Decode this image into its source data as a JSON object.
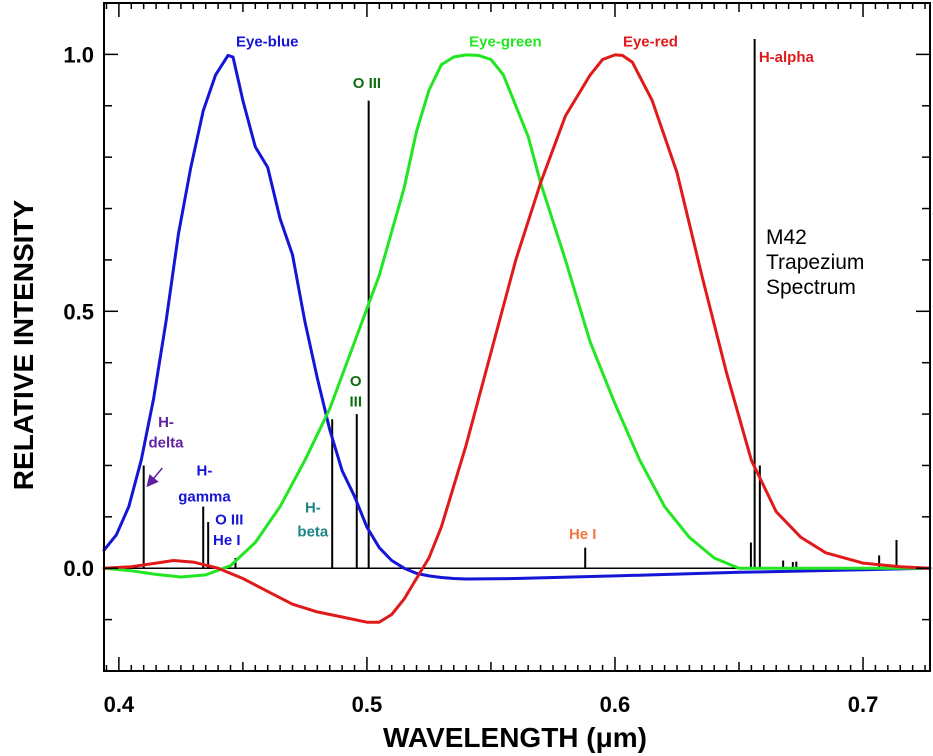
{
  "chart_data": {
    "type": "line",
    "title": "",
    "xlabel": "WAVELENGTH (μm)",
    "ylabel": "RELATIVE INTENSITY",
    "xlim": [
      0.394,
      0.727
    ],
    "ylim": [
      -0.2,
      1.1
    ],
    "x_ticks": [
      {
        "value": 0.4,
        "label": "0.4"
      },
      {
        "value": 0.5,
        "label": "0.5"
      },
      {
        "value": 0.6,
        "label": "0.6"
      },
      {
        "value": 0.7,
        "label": "0.7"
      }
    ],
    "y_ticks": [
      {
        "value": 0.0,
        "label": "0.0"
      },
      {
        "value": 0.5,
        "label": "0.5"
      },
      {
        "value": 1.0,
        "label": "1.0"
      }
    ],
    "grid": false,
    "colors": {
      "blue": "#1515d8",
      "green": "#22e622",
      "red": "#e01a1a",
      "spectrum": "#000000"
    },
    "series": [
      {
        "name": "Eye-blue",
        "label": "Eye-blue",
        "color": "#1515d8",
        "label_at": [
          0.446,
          1.0
        ],
        "x": [
          0.394,
          0.399,
          0.404,
          0.409,
          0.414,
          0.419,
          0.424,
          0.429,
          0.434,
          0.439,
          0.444,
          0.446,
          0.45,
          0.455,
          0.46,
          0.465,
          0.47,
          0.475,
          0.48,
          0.485,
          0.49,
          0.495,
          0.5,
          0.505,
          0.51,
          0.515,
          0.52,
          0.525,
          0.53,
          0.535,
          0.54,
          0.56,
          0.6,
          0.65,
          0.7,
          0.727
        ],
        "y": [
          0.035,
          0.065,
          0.12,
          0.21,
          0.33,
          0.48,
          0.65,
          0.78,
          0.89,
          0.96,
          0.998,
          0.995,
          0.91,
          0.82,
          0.78,
          0.68,
          0.61,
          0.48,
          0.37,
          0.27,
          0.19,
          0.14,
          0.08,
          0.04,
          0.015,
          0.0,
          -0.01,
          -0.015,
          -0.018,
          -0.02,
          -0.021,
          -0.02,
          -0.015,
          -0.008,
          -0.003,
          0.0
        ]
      },
      {
        "name": "Eye-green",
        "label": "Eye-green",
        "color": "#22e622",
        "label_at": [
          0.54,
          1.0
        ],
        "x": [
          0.394,
          0.405,
          0.415,
          0.425,
          0.435,
          0.445,
          0.455,
          0.465,
          0.475,
          0.485,
          0.495,
          0.505,
          0.515,
          0.52,
          0.525,
          0.53,
          0.535,
          0.54,
          0.545,
          0.55,
          0.555,
          0.56,
          0.565,
          0.57,
          0.58,
          0.59,
          0.6,
          0.61,
          0.62,
          0.63,
          0.64,
          0.65,
          0.7,
          0.727
        ],
        "y": [
          0.0,
          -0.005,
          -0.012,
          -0.017,
          -0.013,
          0.005,
          0.05,
          0.12,
          0.21,
          0.31,
          0.44,
          0.57,
          0.74,
          0.85,
          0.93,
          0.98,
          0.995,
          0.999,
          0.998,
          0.99,
          0.96,
          0.9,
          0.84,
          0.75,
          0.6,
          0.44,
          0.32,
          0.21,
          0.12,
          0.06,
          0.02,
          0.0,
          0.0,
          0.0
        ]
      },
      {
        "name": "Eye-red",
        "label": "Eye-red",
        "color": "#e01a1a",
        "label_at": [
          0.602,
          1.0
        ],
        "x": [
          0.394,
          0.405,
          0.415,
          0.422,
          0.43,
          0.44,
          0.45,
          0.46,
          0.47,
          0.48,
          0.49,
          0.5,
          0.505,
          0.51,
          0.515,
          0.52,
          0.525,
          0.53,
          0.54,
          0.55,
          0.56,
          0.57,
          0.58,
          0.59,
          0.595,
          0.6,
          0.603,
          0.607,
          0.615,
          0.625,
          0.635,
          0.645,
          0.655,
          0.665,
          0.675,
          0.685,
          0.7,
          0.715,
          0.727
        ],
        "y": [
          0.0,
          0.003,
          0.01,
          0.015,
          0.012,
          0.0,
          -0.02,
          -0.045,
          -0.07,
          -0.085,
          -0.095,
          -0.105,
          -0.105,
          -0.09,
          -0.06,
          -0.02,
          0.02,
          0.08,
          0.24,
          0.42,
          0.6,
          0.75,
          0.88,
          0.96,
          0.99,
          0.999,
          0.998,
          0.985,
          0.91,
          0.77,
          0.57,
          0.38,
          0.21,
          0.11,
          0.06,
          0.03,
          0.01,
          0.003,
          0.0
        ]
      }
    ],
    "spectrum_lines": [
      {
        "x": 0.41,
        "y": 0.2
      },
      {
        "x": 0.434,
        "y": 0.12
      },
      {
        "x": 0.436,
        "y": 0.09
      },
      {
        "x": 0.447,
        "y": 0.02
      },
      {
        "x": 0.486,
        "y": 0.29
      },
      {
        "x": 0.4959,
        "y": 0.3
      },
      {
        "x": 0.5007,
        "y": 0.91
      },
      {
        "x": 0.588,
        "y": 0.04
      },
      {
        "x": 0.6548,
        "y": 0.05
      },
      {
        "x": 0.6563,
        "y": 1.03
      },
      {
        "x": 0.6584,
        "y": 0.2
      },
      {
        "x": 0.6678,
        "y": 0.015
      },
      {
        "x": 0.6717,
        "y": 0.012
      },
      {
        "x": 0.6731,
        "y": 0.013
      },
      {
        "x": 0.7065,
        "y": 0.025
      },
      {
        "x": 0.7135,
        "y": 0.055
      }
    ],
    "annotations": [
      {
        "text": "H-alpha",
        "x": 0.658,
        "y": 0.985,
        "color": "#e01a1a",
        "anchor": "start"
      },
      {
        "text": "O III",
        "x": 0.5,
        "y": 0.935,
        "color": "#0e6e0e",
        "anchor": "middle"
      },
      {
        "text": "O",
        "x": 0.4955,
        "y": 0.355,
        "color": "#0e6e0e",
        "anchor": "middle"
      },
      {
        "text": "III",
        "x": 0.4955,
        "y": 0.315,
        "color": "#0e6e0e",
        "anchor": "middle"
      },
      {
        "text": "H-",
        "x": 0.419,
        "y": 0.275,
        "color": "#5f1fa0",
        "anchor": "middle"
      },
      {
        "text": "delta",
        "x": 0.419,
        "y": 0.235,
        "color": "#5f1fa0",
        "anchor": "middle"
      },
      {
        "text": "H-",
        "x": 0.4345,
        "y": 0.18,
        "color": "#1515d8",
        "anchor": "middle"
      },
      {
        "text": "gamma",
        "x": 0.4345,
        "y": 0.13,
        "color": "#1515d8",
        "anchor": "middle"
      },
      {
        "text": "O III",
        "x": 0.4445,
        "y": 0.085,
        "color": "#1515d8",
        "anchor": "middle"
      },
      {
        "text": "He I",
        "x": 0.4435,
        "y": 0.045,
        "color": "#1515d8",
        "anchor": "middle"
      },
      {
        "text": "H-",
        "x": 0.4782,
        "y": 0.108,
        "color": "#1c8585",
        "anchor": "middle"
      },
      {
        "text": "beta",
        "x": 0.4782,
        "y": 0.062,
        "color": "#1c8585",
        "anchor": "middle"
      },
      {
        "text": "He I",
        "x": 0.587,
        "y": 0.057,
        "color": "#f07840",
        "anchor": "middle"
      }
    ],
    "arrow": {
      "from": [
        0.4175,
        0.195
      ],
      "to": [
        0.4115,
        0.16
      ],
      "color": "#5f1fa0"
    },
    "inset_text": [
      "M42",
      "Trapezium",
      "Spectrum"
    ]
  }
}
